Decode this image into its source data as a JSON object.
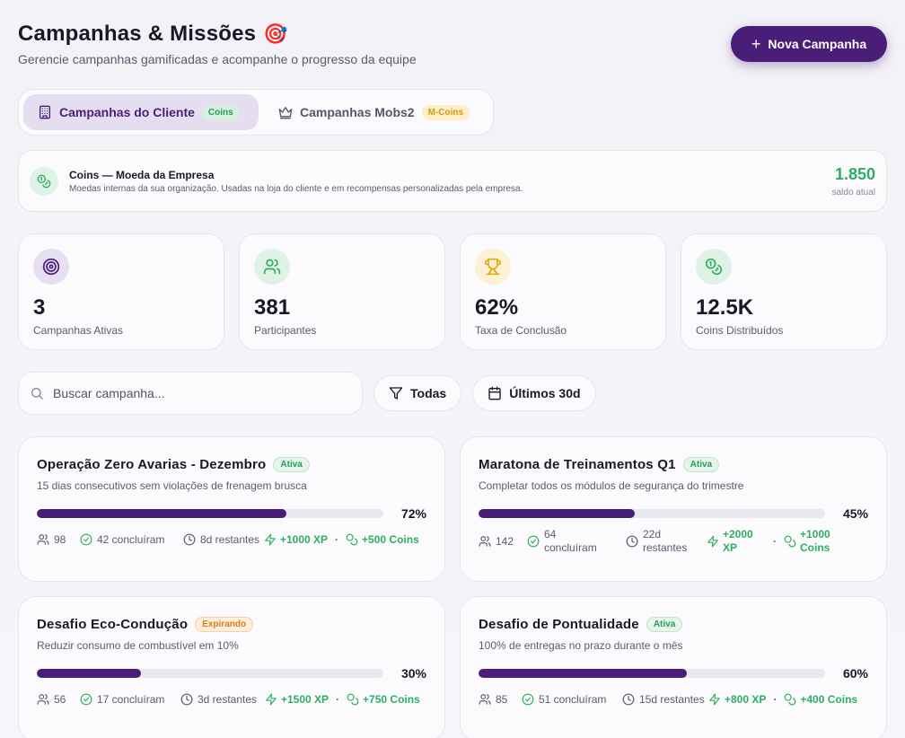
{
  "header": {
    "title": "Campanhas & Missões",
    "title_emoji": "🎯",
    "subtitle": "Gerencie campanhas gamificadas e acompanhe o progresso da equipe",
    "new_button": "Nova Campanha"
  },
  "tabs": [
    {
      "label": "Campanhas do Cliente",
      "badge": "Coins",
      "active": true
    },
    {
      "label": "Campanhas Mobs2",
      "badge": "M-Coins",
      "active": false
    }
  ],
  "banner": {
    "title": "Coins — Moeda da Empresa",
    "description": "Moedas internas da sua organização. Usadas na loja do cliente e em recompensas personalizadas pela empresa.",
    "balance": "1.850",
    "balance_label": "saldo atual"
  },
  "stats": [
    {
      "value": "3",
      "label": "Campanhas Ativas",
      "icon": "target-icon"
    },
    {
      "value": "381",
      "label": "Participantes",
      "icon": "users-icon"
    },
    {
      "value": "62%",
      "label": "Taxa de Conclusão",
      "icon": "trophy-icon"
    },
    {
      "value": "12.5K",
      "label": "Coins Distribuídos",
      "icon": "coins-icon"
    }
  ],
  "toolbar": {
    "search_placeholder": "Buscar campanha...",
    "filter_label": "Todas",
    "date_label": "Últimos 30d"
  },
  "campaigns": [
    {
      "title": "Operação Zero Avarias - Dezembro",
      "status": "Ativa",
      "description": "15 dias consecutivos sem violações de frenagem brusca",
      "progress": 72,
      "progress_label": "72%",
      "participants": "98",
      "completed": "42 concluíram",
      "remaining": "8d restantes",
      "xp": "+1000 XP",
      "coins": "+500 Coins"
    },
    {
      "title": "Maratona de Treinamentos Q1",
      "status": "Ativa",
      "description": "Completar todos os módulos de segurança do trimestre",
      "progress": 45,
      "progress_label": "45%",
      "participants": "142",
      "completed": "64 concluíram",
      "remaining": "22d restantes",
      "xp": "+2000 XP",
      "coins": "+1000 Coins"
    },
    {
      "title": "Desafio Eco-Condução",
      "status": "Expirando",
      "description": "Reduzir consumo de combustível em 10%",
      "progress": 30,
      "progress_label": "30%",
      "participants": "56",
      "completed": "17 concluíram",
      "remaining": "3d restantes",
      "xp": "+1500 XP",
      "coins": "+750 Coins"
    },
    {
      "title": "Desafio de Pontualidade",
      "status": "Ativa",
      "description": "100% de entregas no prazo durante o mês",
      "progress": 60,
      "progress_label": "60%",
      "participants": "85",
      "completed": "51 concluíram",
      "remaining": "15d restantes",
      "xp": "+800 XP",
      "coins": "+400 Coins"
    }
  ]
}
